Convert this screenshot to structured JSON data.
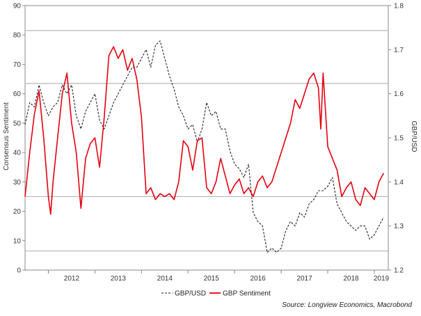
{
  "chart_data": {
    "type": "line",
    "y_left": {
      "label": "Consensus Sentiment",
      "range": [
        0,
        90
      ],
      "ticks": [
        "0",
        "10",
        "20",
        "30",
        "40",
        "50",
        "60",
        "70",
        "80",
        "90"
      ]
    },
    "y_right": {
      "label": "GBP/USD",
      "range": [
        1.2,
        1.8
      ],
      "ticks": [
        "1.2",
        "1.3",
        "1.4",
        "1.5",
        "1.6",
        "1.7",
        "1.8"
      ]
    },
    "x_axis": {
      "labels": [
        "2012",
        "2013",
        "2014",
        "2015",
        "2016",
        "2017",
        "2018",
        "2019"
      ],
      "range": [
        2011.5,
        2019.3
      ]
    },
    "reference_lines_left": [
      81.5,
      63.5,
      25,
      6.5
    ],
    "grid": false,
    "legend_position": "bottom",
    "series": [
      {
        "name": "GBP/USD",
        "axis": "right",
        "style": "dashed",
        "color": "#222222",
        "x": [
          2011.5,
          2011.6,
          2011.7,
          2011.8,
          2011.9,
          2012.0,
          2012.1,
          2012.2,
          2012.3,
          2012.4,
          2012.5,
          2012.6,
          2012.7,
          2012.8,
          2012.9,
          2013.0,
          2013.1,
          2013.2,
          2013.3,
          2013.4,
          2013.5,
          2013.6,
          2013.7,
          2013.8,
          2013.9,
          2014.0,
          2014.1,
          2014.2,
          2014.3,
          2014.4,
          2014.5,
          2014.6,
          2014.7,
          2014.8,
          2014.9,
          2015.0,
          2015.1,
          2015.2,
          2015.3,
          2015.4,
          2015.5,
          2015.6,
          2015.7,
          2015.8,
          2015.9,
          2016.0,
          2016.1,
          2016.2,
          2016.3,
          2016.4,
          2016.5,
          2016.6,
          2016.7,
          2016.8,
          2016.9,
          2017.0,
          2017.1,
          2017.2,
          2017.3,
          2017.4,
          2017.5,
          2017.6,
          2017.7,
          2017.8,
          2017.9,
          2018.0,
          2018.1,
          2018.2,
          2018.3,
          2018.4,
          2018.5,
          2018.6,
          2018.7,
          2018.8,
          2018.9,
          2019.0,
          2019.1,
          2019.2
        ],
        "values": [
          1.53,
          1.58,
          1.57,
          1.62,
          1.58,
          1.55,
          1.57,
          1.58,
          1.62,
          1.6,
          1.62,
          1.55,
          1.52,
          1.56,
          1.58,
          1.6,
          1.54,
          1.52,
          1.55,
          1.58,
          1.6,
          1.62,
          1.64,
          1.66,
          1.66,
          1.68,
          1.7,
          1.66,
          1.71,
          1.72,
          1.68,
          1.64,
          1.61,
          1.57,
          1.55,
          1.52,
          1.53,
          1.49,
          1.52,
          1.58,
          1.55,
          1.56,
          1.52,
          1.52,
          1.47,
          1.44,
          1.43,
          1.41,
          1.44,
          1.33,
          1.31,
          1.3,
          1.24,
          1.25,
          1.24,
          1.25,
          1.29,
          1.31,
          1.3,
          1.33,
          1.32,
          1.35,
          1.36,
          1.38,
          1.38,
          1.39,
          1.41,
          1.35,
          1.33,
          1.31,
          1.3,
          1.29,
          1.3,
          1.3,
          1.27,
          1.28,
          1.3,
          1.32
        ]
      },
      {
        "name": "GBP Sentiment",
        "axis": "left",
        "style": "solid",
        "color": "#e3000f",
        "x": [
          2011.5,
          2011.6,
          2011.7,
          2011.8,
          2011.9,
          2012.0,
          2012.05,
          2012.1,
          2012.2,
          2012.3,
          2012.4,
          2012.5,
          2012.6,
          2012.7,
          2012.8,
          2012.9,
          2013.0,
          2013.1,
          2013.2,
          2013.3,
          2013.4,
          2013.5,
          2013.6,
          2013.7,
          2013.8,
          2013.9,
          2014.0,
          2014.1,
          2014.2,
          2014.3,
          2014.4,
          2014.5,
          2014.6,
          2014.7,
          2014.8,
          2014.9,
          2015.0,
          2015.1,
          2015.2,
          2015.3,
          2015.4,
          2015.5,
          2015.6,
          2015.7,
          2015.8,
          2015.9,
          2016.0,
          2016.1,
          2016.2,
          2016.3,
          2016.4,
          2016.5,
          2016.6,
          2016.7,
          2016.8,
          2016.9,
          2017.0,
          2017.1,
          2017.2,
          2017.3,
          2017.4,
          2017.5,
          2017.6,
          2017.7,
          2017.8,
          2017.85,
          2017.9,
          2018.0,
          2018.1,
          2018.2,
          2018.3,
          2018.4,
          2018.5,
          2018.6,
          2018.7,
          2018.8,
          2018.9,
          2019.0,
          2019.1,
          2019.2
        ],
        "values": [
          25,
          40,
          53,
          61,
          45,
          25,
          19,
          30,
          45,
          60,
          67,
          50,
          40,
          21,
          38,
          43,
          45,
          35,
          52,
          73,
          76,
          72,
          75,
          68,
          72,
          65,
          52,
          26,
          28,
          24,
          26,
          25,
          26,
          24,
          30,
          44,
          42,
          34,
          44,
          45,
          28,
          26,
          30,
          38,
          32,
          26,
          29,
          31,
          26,
          28,
          25,
          30,
          32,
          28,
          30,
          35,
          40,
          45,
          50,
          58,
          55,
          60,
          65,
          67,
          62,
          48,
          67,
          42,
          38,
          34,
          25,
          28,
          30,
          24,
          22,
          28,
          26,
          24,
          30,
          33
        ]
      }
    ],
    "legend": [
      "GBP/USD",
      "GBP Sentiment"
    ],
    "source": "Source: Longview Economics, Macrobond"
  }
}
